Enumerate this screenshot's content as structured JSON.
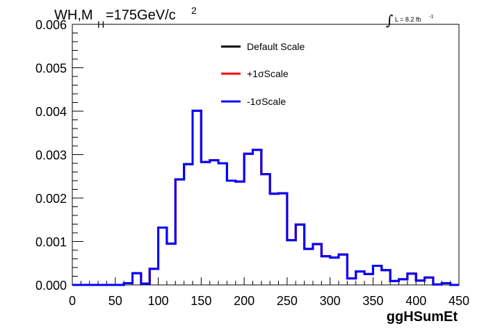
{
  "chart_data": {
    "type": "line",
    "title_parts": {
      "main": "WH,M",
      "subscript": "H",
      "value": "=175GeV/c",
      "superscript": "2"
    },
    "lumi_label": "L = 8.2 fb",
    "lumi_exponent": "-1",
    "xlabel": "ggHSumEt",
    "ylabel": "",
    "xlim": [
      0,
      450
    ],
    "ylim": [
      0,
      0.006
    ],
    "x_ticks": [
      "0",
      "50",
      "100",
      "150",
      "200",
      "250",
      "300",
      "350",
      "400",
      "450"
    ],
    "y_ticks": [
      "0.000",
      "0.001",
      "0.002",
      "0.003",
      "0.004",
      "0.005",
      "0.006"
    ],
    "legend_position": "top-center",
    "bin_width": 10,
    "bin_edges_start": 0,
    "series": [
      {
        "name": "Default Scale",
        "color": "#000000",
        "values": [
          0,
          0,
          0,
          0,
          0,
          0,
          4e-05,
          0.00027,
          3e-05,
          0.00037,
          0.00132,
          0.00095,
          0.00243,
          0.00278,
          0.00401,
          0.00283,
          0.00287,
          0.0028,
          0.0024,
          0.00238,
          0.00302,
          0.00311,
          0.00255,
          0.0021,
          0.00211,
          0.00103,
          0.00139,
          0.00083,
          0.00094,
          0.00066,
          0.00063,
          0.0007,
          0.00015,
          0.00031,
          0.00025,
          0.00044,
          0.00034,
          9e-05,
          0.00013,
          0.00026,
          0.0001,
          0.00017,
          1e-05,
          4e-05,
          0
        ]
      },
      {
        "name": "+1σScale",
        "color": "#ff0000",
        "values": [
          0,
          0,
          0,
          0,
          0,
          0,
          4e-05,
          0.00027,
          3e-05,
          0.00037,
          0.00132,
          0.00095,
          0.00243,
          0.00278,
          0.00401,
          0.00283,
          0.00287,
          0.0028,
          0.0024,
          0.00238,
          0.00302,
          0.00311,
          0.00255,
          0.0021,
          0.00211,
          0.00103,
          0.00139,
          0.00083,
          0.00094,
          0.00066,
          0.00063,
          0.0007,
          0.00015,
          0.00031,
          0.00025,
          0.00044,
          0.00034,
          9e-05,
          0.00013,
          0.00026,
          0.0001,
          0.00017,
          1e-05,
          4e-05,
          0
        ]
      },
      {
        "name": "-1σScale",
        "color": "#0000ff",
        "values": [
          0,
          0,
          0,
          0,
          0,
          0,
          4e-05,
          0.00027,
          3e-05,
          0.00037,
          0.00132,
          0.00095,
          0.00243,
          0.00278,
          0.00401,
          0.00283,
          0.00287,
          0.0028,
          0.0024,
          0.00238,
          0.00302,
          0.00311,
          0.00255,
          0.0021,
          0.00211,
          0.00103,
          0.00139,
          0.00083,
          0.00094,
          0.00066,
          0.00063,
          0.0007,
          0.00015,
          0.00031,
          0.00025,
          0.00044,
          0.00034,
          9e-05,
          0.00013,
          0.00026,
          0.0001,
          0.00017,
          1e-05,
          4e-05,
          0
        ]
      }
    ]
  }
}
